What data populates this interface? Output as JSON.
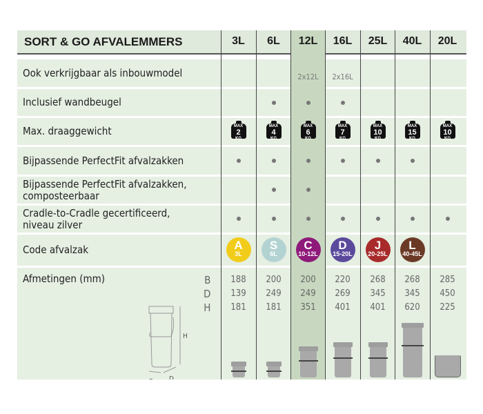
{
  "title": "SORT & GO AFVALEMMERS",
  "columns": [
    "3L",
    "6L",
    "12L",
    "16L",
    "25L",
    "40L",
    "20L"
  ],
  "rows": {
    "inbouw": {
      "label": "Ook verkrijgbaar als inbouwmodel",
      "values": [
        "",
        "",
        "2x12L",
        "2x16L",
        "",
        "",
        ""
      ]
    },
    "wandbeugel": {
      "label": "Inclusief wandbeugel",
      "values": [
        false,
        true,
        true,
        true,
        false,
        false,
        false
      ]
    },
    "draag": {
      "label": "Max. draaggewicht",
      "max": "MAX",
      "unit": "KG",
      "values": [
        "2",
        "4",
        "6",
        "7",
        "10",
        "15",
        "10"
      ]
    },
    "perfectfit": {
      "label": "Bijpassende PerfectFit afvalzakken",
      "values": [
        true,
        true,
        true,
        true,
        true,
        true,
        false
      ]
    },
    "compost": {
      "label1": "Bijpassende PerfectFit afvalzakken,",
      "label2": "composteerbaar",
      "values": [
        false,
        true,
        true,
        false,
        false,
        false,
        false
      ]
    },
    "cradle": {
      "label1": "Cradle-to-Cradle gecertificeerd,",
      "label2": "niveau zilver",
      "values": [
        true,
        true,
        true,
        true,
        true,
        true,
        true
      ]
    },
    "code": {
      "label": "Code afvalzak",
      "badges": [
        {
          "letter": "A",
          "size": "3L",
          "color": "#f2cc1a"
        },
        {
          "letter": "S",
          "size": "6L",
          "color": "#b3d3d3"
        },
        {
          "letter": "C",
          "size": "10-12L",
          "color": "#8e1a7a"
        },
        {
          "letter": "D",
          "size": "15-20L",
          "color": "#5b4a9c"
        },
        {
          "letter": "J",
          "size": "20-25L",
          "color": "#a82a2a"
        },
        {
          "letter": "L",
          "size": "40-45L",
          "color": "#6b3a26"
        },
        null
      ]
    },
    "afmetingen": {
      "label": "Afmetingen (mm)",
      "dims": [
        "B",
        "D",
        "H"
      ],
      "B": [
        "188",
        "200",
        "200",
        "220",
        "268",
        "268",
        "285"
      ],
      "D": [
        "139",
        "249",
        "249",
        "269",
        "345",
        "345",
        "450"
      ],
      "H": [
        "181",
        "181",
        "351",
        "401",
        "401",
        "620",
        "225"
      ],
      "diagram": {
        "h": "H",
        "b": "B",
        "d": "D"
      }
    }
  },
  "colors": {
    "background": "#e5efe2",
    "highlight": "#c8d8c0",
    "dot": "#777777"
  }
}
